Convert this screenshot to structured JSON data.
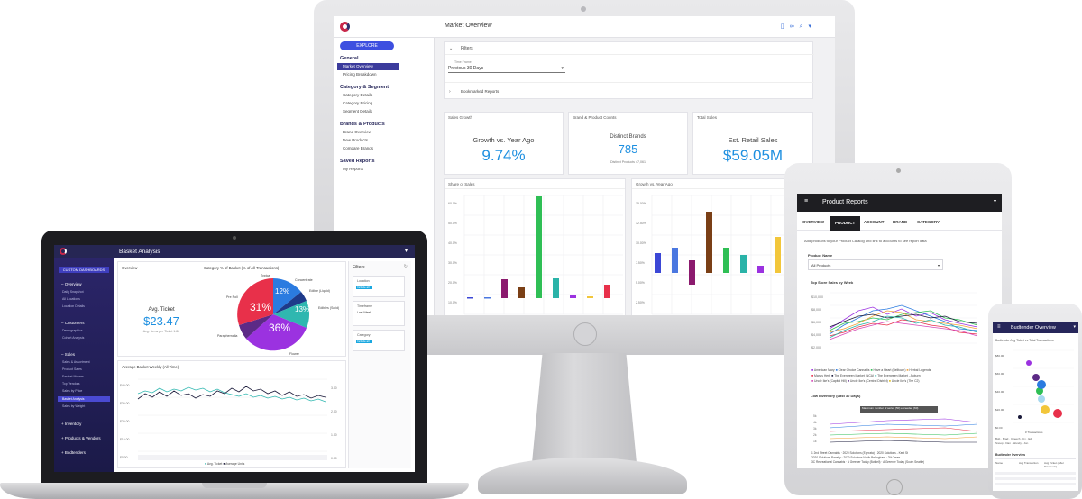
{
  "monitor": {
    "header_title": "Market Overview",
    "explore_label": "EXPLORE",
    "nav": [
      {
        "section": "General",
        "items": [
          "Market Overview",
          "Pricing Breakdown"
        ]
      },
      {
        "section": "Category & Segment",
        "items": [
          "Category Details",
          "Category Pricing",
          "Segment Details"
        ]
      },
      {
        "section": "Brands & Products",
        "items": [
          "Brand Overview",
          "New Products",
          "Compare Brands"
        ]
      },
      {
        "section": "Saved Reports",
        "items": [
          "My Reports"
        ]
      }
    ],
    "active_nav": "Market Overview",
    "filters": {
      "title": "Filters",
      "time_frame_label": "Time Frame",
      "time_frame_value": "Previous 30 Days",
      "bookmarked_label": "Bookmarked Reports"
    },
    "kpis": [
      {
        "panel": "Sales Growth",
        "label": "Growth vs. Year Ago",
        "value": "9.74%"
      },
      {
        "panel": "Brand & Product Counts",
        "label": "Distinct Brands",
        "value": "785",
        "sub_label": "Distinct Products",
        "sub_value": "47,061"
      },
      {
        "panel": "Total Sales",
        "label": "Est. Retail Sales",
        "value": "$59.05M"
      }
    ],
    "share_chart": {
      "title": "Share of Sales",
      "yticks": [
        "60.0%",
        "50.0%",
        "40.0%",
        "30.0%",
        "20.0%",
        "10.0%",
        "0.0%"
      ]
    },
    "growth_chart": {
      "title": "Growth vs. Year Ago",
      "yticks": [
        "15.00%",
        "12.50%",
        "10.00%",
        "7.50%",
        "5.00%",
        "2.50%",
        "0.00%"
      ]
    }
  },
  "laptop": {
    "header_title": "Basket Analysis",
    "custom_dashboards": "CUSTOM DASHBOARDS",
    "nav": [
      {
        "section": "Overview",
        "items": [
          "Daily Snapshot",
          "All Locations",
          "Location Details"
        ]
      },
      {
        "section": "Customers",
        "items": [
          "Demographics",
          "Cohort Analysis"
        ]
      },
      {
        "section": "Sales",
        "items": [
          "Sales & Assortment",
          "Product Sales",
          "Fastest Movers",
          "Top Vendors",
          "Sales by Price",
          "Basket Analysis",
          "Sales by Weight"
        ]
      },
      {
        "section": "Inventory",
        "items": []
      },
      {
        "section": "Products & Vendors",
        "items": []
      },
      {
        "section": "Budtenders",
        "items": []
      }
    ],
    "overview_label": "Overview",
    "avg_ticket_label": "Avg. Ticket",
    "avg_ticket_value": "$23.47",
    "avg_items_label": "Avg. Items per Ticket",
    "avg_items_value": "1.86",
    "pie_title": "Category % of Basket (% of All Transactions)",
    "pie_labels": {
      "typical": "Typical",
      "concentrate": "Concentrate",
      "edible": "Edible (Liquid)",
      "edibles": "Edibles (Solid)",
      "preroll": "Pre Roll",
      "paraphernalia": "Paraphernalia",
      "flower": "Flower"
    },
    "pie_values": {
      "pre_roll": "31%",
      "flower": "36%",
      "concentrate": "12%",
      "edible": "3%",
      "edibles": "13%"
    },
    "line_title": "Average Basket Weekly (All Time)",
    "line_yticks_left": [
      "$40.00",
      "$30.00",
      "$20.00",
      "$10.00",
      "$0.00"
    ],
    "line_yticks_right": [
      "3.00",
      "2.00",
      "1.00",
      "0.00"
    ],
    "line_legend": [
      "Avg. Ticket",
      "Average Units"
    ],
    "filters_title": "Filters",
    "filter_sections": [
      {
        "label": "Location",
        "chip": "Include all"
      },
      {
        "label": "Timeframe",
        "chip": "Last Week"
      },
      {
        "label": "Category",
        "chip": "Include all"
      }
    ]
  },
  "tablet": {
    "header_title": "Product Reports",
    "tabs": [
      "OVERVIEW",
      "PRODUCT",
      "ACCOUNT",
      "BRAND",
      "CATEGORY"
    ],
    "active_tab": "PRODUCT",
    "add_text": "Add products to your Product Catalog and link to accounts to see report data",
    "product_label": "Product Name",
    "product_value": "All Products",
    "top_sales_title": "Top Store Sales by Week",
    "top_sales_yticks": [
      "$10,000",
      "$8,000",
      "$6,000",
      "$4,000",
      "$2,000",
      "$0"
    ],
    "legend": [
      "American Mary",
      "Clear Choice Cannabis",
      "Have a Heart (Belltown)",
      "Herbal Legends",
      "Mary's Herb",
      "The Evergreen Market (NCA)",
      "The Evergreen Market - Auburn",
      "Uncle Ike's (Capitol Hill)",
      "Uncle Ike's (Central District)",
      "Uncle Ike's (The C2)"
    ],
    "low_inventory_title": "Low Inventory (Last 30 Days)",
    "low_inventory_note": "Maximum number of series (50) exceeded (60)",
    "low_inventory_yticks": [
      "5k",
      "4k",
      "3k",
      "2k",
      "1k",
      "0"
    ],
    "low_legend": [
      "1 2nd Street Cannabis",
      "2020 Solutions (Ephrata)",
      "2020 Solutions - Kent St",
      "2020 Solutions Paceby",
      "2020 Solutions North Bellingham",
      "2% Trees",
      "3C Recreational Cannabis",
      "A Greener Today (Bothell)",
      "A Greener Today (South Seattle)"
    ]
  },
  "phone": {
    "header_title": "Budtender Overview",
    "chart_title": "Budtender Avg Ticket vs Total Transactions",
    "yticks": [
      "$80.00",
      "$60.00",
      "$40.00",
      "$20.00",
      "$0.00"
    ],
    "xticks": [
      "0",
      "100",
      "200"
    ],
    "y_label": "Avg Ticket",
    "x_label": "# Transactions",
    "legend": [
      "Bob",
      "Brad",
      "Cheech",
      "Cy",
      "Ed",
      "Snoop",
      "Dan",
      "Wendy",
      "Jon"
    ],
    "table_title": "Budtender Overview",
    "table_headers": [
      "Name",
      "Avg Transaction",
      "Avg Ticket (After Discounts)"
    ]
  },
  "colors": {
    "accent_blue": "#1d8fe0",
    "navy": "#26265a",
    "pie_red": "#e8304a",
    "pie_purple": "#9b32e0",
    "pie_blue": "#2b7be0",
    "pie_teal": "#2fb7b0"
  }
}
